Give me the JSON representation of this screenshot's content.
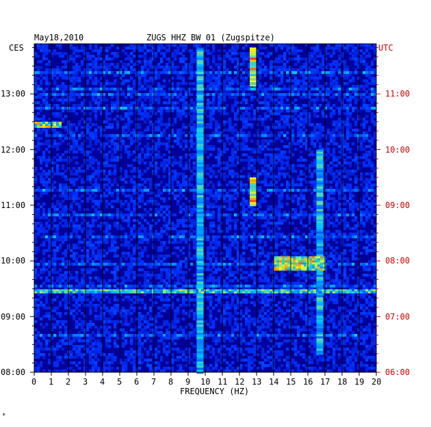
{
  "header": {
    "date": "May18,2010",
    "station": "ZUGS HHZ BW 01 (Zugspitze)",
    "left_zone": "CES",
    "right_zone": "UTC"
  },
  "footer_mark": "*",
  "colors": {
    "background": "#000099",
    "grid": "#000000",
    "utc_labels": "#cc0000"
  },
  "chart_data": {
    "type": "heatmap",
    "title": "ZUGS HHZ BW 01 (Zugspitze)",
    "xlabel": "FREQUENCY (HZ)",
    "ylabel_left": "CES",
    "ylabel_right": "UTC",
    "xlim": [
      0,
      20
    ],
    "x_ticks": [
      "0",
      "1",
      "2",
      "3",
      "4",
      "5",
      "6",
      "7",
      "8",
      "9",
      "10",
      "11",
      "12",
      "13",
      "14",
      "15",
      "16",
      "17",
      "18",
      "19",
      "20"
    ],
    "y_ticks_left": [
      "13:00",
      "12:00",
      "11:00",
      "10:00",
      "09:00",
      "08:00"
    ],
    "y_ticks_right": [
      "11:00",
      "10:00",
      "09:00",
      "08:00",
      "07:00",
      "06:00"
    ],
    "y_range_local_hours": [
      8.0,
      13.9
    ],
    "colormap": [
      "#000099",
      "#0033ff",
      "#00ccff",
      "#ffff00",
      "#ff0000"
    ],
    "features": [
      {
        "name": "persistent line",
        "freq_hz": 12.8,
        "from_local": "11:00",
        "to_local": "11:30",
        "intensity": 0.95
      },
      {
        "name": "persistent line",
        "freq_hz": 12.8,
        "from_local": "13:10",
        "to_local": "13:50",
        "intensity": 0.95
      },
      {
        "name": "band",
        "freq_hz": 9.7,
        "from_local": "08:00",
        "to_local": "13:50",
        "intensity": 0.6
      },
      {
        "name": "band",
        "freq_hz": 16.7,
        "from_local": "08:20",
        "to_local": "12:00",
        "intensity": 0.6
      },
      {
        "name": "burst",
        "freq_range_hz": [
          14,
          17
        ],
        "from_local": "09:50",
        "to_local": "10:05",
        "intensity": 0.9
      },
      {
        "name": "burst",
        "freq_range_hz": [
          0,
          1.5
        ],
        "from_local": "12:25",
        "to_local": "12:30",
        "intensity": 0.9
      },
      {
        "name": "broadband line",
        "freq_range_hz": [
          0,
          20
        ],
        "at_local": "09:28",
        "intensity": 0.7
      }
    ]
  }
}
